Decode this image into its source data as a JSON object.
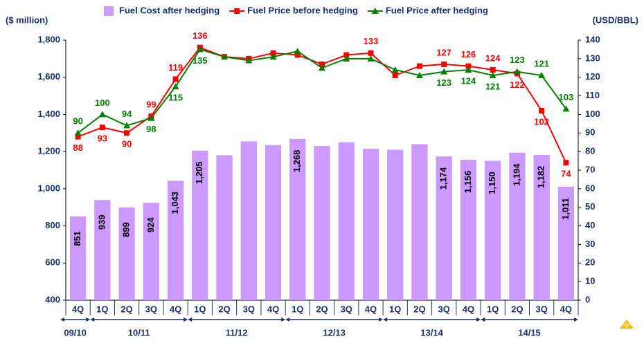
{
  "chart_data": {
    "type": "bar_line",
    "y_label": "($ million)",
    "y2_label": "(USD/BBL)",
    "categories": [
      "4Q",
      "1Q",
      "2Q",
      "3Q",
      "4Q",
      "1Q",
      "2Q",
      "3Q",
      "4Q",
      "1Q",
      "2Q",
      "3Q",
      "4Q",
      "1Q",
      "2Q",
      "3Q",
      "4Q",
      "1Q",
      "2Q",
      "3Q",
      "4Q"
    ],
    "groups": [
      {
        "label": "09/10",
        "count": 1
      },
      {
        "label": "10/11",
        "count": 4
      },
      {
        "label": "11/12",
        "count": 4
      },
      {
        "label": "12/13",
        "count": 4
      },
      {
        "label": "13/14",
        "count": 4
      },
      {
        "label": "14/15",
        "count": 4
      }
    ],
    "series": [
      {
        "name": "Fuel Cost after hedging",
        "kind": "bar",
        "color": "#cc99ff",
        "values": [
          851,
          939,
          899,
          924,
          1043,
          1205,
          1180,
          1255,
          1235,
          1268,
          1230,
          1250,
          1215,
          1210,
          1240,
          1174,
          1156,
          1150,
          1194,
          1182,
          1011
        ],
        "value_labels": [
          "851",
          "939",
          "899",
          "924",
          "1,043",
          "1,205",
          null,
          null,
          null,
          "1,268",
          null,
          null,
          null,
          null,
          null,
          "1,174",
          "1,156",
          "1,150",
          "1,194",
          "1,182",
          "1,011"
        ]
      },
      {
        "name": "Fuel Price before hedging",
        "kind": "line",
        "marker": "square",
        "axis": "y2",
        "color": "#ff0000",
        "values": [
          88,
          93,
          90,
          99,
          119,
          136,
          131,
          130,
          133,
          132,
          127,
          132,
          133,
          121,
          126,
          127,
          126,
          124,
          122,
          102,
          74
        ],
        "value_labels": [
          "88",
          "93",
          "90",
          "99",
          "119",
          "136",
          null,
          null,
          null,
          null,
          null,
          null,
          "133",
          null,
          null,
          "127",
          "126",
          "124",
          "122",
          "102",
          "74"
        ]
      },
      {
        "name": "Fuel Price after hedging",
        "kind": "line",
        "marker": "triangle",
        "axis": "y2",
        "color": "#008000",
        "values": [
          90,
          100,
          94,
          98,
          115,
          135,
          131,
          129,
          131,
          134,
          125,
          130,
          130,
          124,
          121,
          123,
          124,
          121,
          123,
          121,
          103
        ],
        "value_labels": [
          "90",
          "100",
          "94",
          "98",
          "115",
          "135",
          null,
          null,
          null,
          null,
          null,
          null,
          null,
          null,
          null,
          "123",
          "124",
          "121",
          "123",
          "121",
          "103"
        ]
      }
    ],
    "ylim": [
      400,
      1800
    ],
    "yticks": [
      400,
      600,
      800,
      {
        "value": 1000,
        "label": "1,000"
      },
      {
        "value": 1200,
        "label": "1,200"
      },
      {
        "value": 1400,
        "label": "1,400"
      },
      {
        "value": 1600,
        "label": "1,600"
      },
      {
        "value": 1800,
        "label": "1,800"
      }
    ],
    "y2lim": [
      0,
      140
    ],
    "y2ticks": [
      0,
      10,
      20,
      30,
      40,
      50,
      60,
      70,
      80,
      90,
      100,
      110,
      120,
      130,
      140
    ]
  }
}
